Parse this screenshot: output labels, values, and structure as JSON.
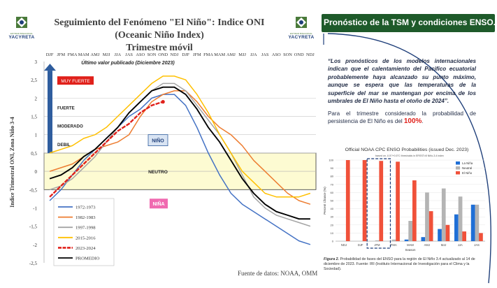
{
  "logo": {
    "caption": "YACYRETA",
    "small_text": "ENTIDAD BINACIONAL"
  },
  "title_line1": "Seguimiento del Fenómeno \"El Niño\": Indice ONI (Oceanic Niño Index)",
  "title_line2": "Trimestre móvil",
  "source": "Fuente de datos: NOAA, OMM",
  "colors": {
    "1972-1973": "#4472c4",
    "1982-1983": "#ed7d31",
    "1997-1998": "#a5a5a5",
    "2015-2016": "#ffc000",
    "2023-2024": "#e0201a",
    "PROMEDIO": "#000000",
    "neutral_band": "#fdfbd2",
    "header_green": "#1e5a2a"
  },
  "chart_data": [
    {
      "type": "line",
      "title": "Seguimiento del Fenómeno \"El Niño\": Indice ONI (Oceanic Niño Index) - Trimestre móvil",
      "xlabel": "",
      "ylabel": "Indice Trimestral ONI, Zona Niño 3-4",
      "x": [
        "DJF",
        "JFM",
        "FMA",
        "MAM",
        "AMJ",
        "MJJ",
        "JJA",
        "JAS",
        "ASO",
        "SON",
        "OND",
        "NDJ",
        "DJF",
        "JFM",
        "FMA",
        "MAM",
        "AMJ",
        "MJJ",
        "JJA",
        "JAS",
        "ASO",
        "SON",
        "OND",
        "NDJ"
      ],
      "ylim": [
        -2.5,
        3
      ],
      "yticks": [
        -2.5,
        -2,
        -1.5,
        -1,
        -0.5,
        0,
        0.5,
        1,
        1.5,
        2,
        2.5,
        3
      ],
      "ytick_labels": [
        "-2,5",
        "-2",
        "-1,5",
        "-1",
        "-0,5",
        "0",
        "0,5",
        "1",
        "1,5",
        "2",
        "2,5",
        "3"
      ],
      "series": [
        {
          "name": "1972-1973",
          "values": [
            -0.8,
            -0.5,
            -0.1,
            0.3,
            0.6,
            0.9,
            1.2,
            1.5,
            1.7,
            2.0,
            2.1,
            2.1,
            1.8,
            1.2,
            0.5,
            -0.1,
            -0.6,
            -0.9,
            -1.1,
            -1.3,
            -1.5,
            -1.7,
            -1.9,
            -2.0
          ]
        },
        {
          "name": "1982-1983",
          "values": [
            0.0,
            0.1,
            0.2,
            0.4,
            0.6,
            0.7,
            0.8,
            1.0,
            1.5,
            1.9,
            2.1,
            2.2,
            2.2,
            1.9,
            1.5,
            1.2,
            1.0,
            0.7,
            0.3,
            0.0,
            -0.3,
            -0.6,
            -0.8,
            -0.9
          ]
        },
        {
          "name": "1997-1998",
          "values": [
            -0.5,
            -0.4,
            -0.2,
            0.1,
            0.4,
            0.8,
            1.2,
            1.6,
            1.9,
            2.2,
            2.4,
            2.4,
            2.2,
            1.8,
            1.4,
            1.0,
            0.5,
            -0.1,
            -0.7,
            -1.0,
            -1.2,
            -1.3,
            -1.4,
            -1.5
          ]
        },
        {
          "name": "2015-2016",
          "values": [
            0.5,
            0.6,
            0.7,
            0.9,
            1.0,
            1.2,
            1.5,
            1.8,
            2.1,
            2.4,
            2.6,
            2.6,
            2.5,
            2.1,
            1.6,
            1.0,
            0.5,
            0.0,
            -0.3,
            -0.6,
            -0.7,
            -0.7,
            -0.7,
            -0.6
          ]
        },
        {
          "name": "2023-2024",
          "values": [
            -0.7,
            -0.4,
            -0.1,
            0.2,
            0.5,
            0.8,
            1.1,
            1.3,
            1.6,
            1.8,
            1.9,
            null,
            null,
            null,
            null,
            null,
            null,
            null,
            null,
            null,
            null,
            null,
            null,
            null
          ]
        },
        {
          "name": "PROMEDIO",
          "values": [
            -0.2,
            -0.1,
            0.1,
            0.4,
            0.6,
            0.9,
            1.2,
            1.6,
            1.9,
            2.2,
            2.3,
            2.3,
            2.1,
            1.7,
            1.2,
            0.8,
            0.3,
            -0.2,
            -0.6,
            -0.9,
            -1.1,
            -1.2,
            -1.3,
            -1.3
          ]
        }
      ],
      "thresholds": [
        {
          "label": "DEBIL",
          "y": 0.5
        },
        {
          "label": "MODERADO",
          "y": 1.0
        },
        {
          "label": "FUERTE",
          "y": 1.5
        },
        {
          "label": "MUY FUERTE",
          "y": 2.0
        }
      ],
      "neutral_band": [
        -0.5,
        0.5
      ],
      "annotations": {
        "last_value": "Último valor publicado  (Diciembre 2023)",
        "nino": "NIÑO",
        "neutro": "NEUTRO",
        "nina": "NIÑA",
        "muy_fuerte": "MUY FUERTE",
        "fuerte": "FUERTE",
        "moderado": "MODERADO",
        "debil": "DEBIL"
      },
      "legend_placement": "bottom-left"
    },
    {
      "type": "bar",
      "title": "Official NOAA CPC ENSO Probabilities (issued Dec. 2023)",
      "subtitle": "based on -0.5°/+0.5°C thresholds in ERSSTv5 Niño-3.4 index",
      "xlabel": "Season",
      "ylabel": "Percent Chance (%)",
      "ylim": [
        0,
        100
      ],
      "yticks": [
        0,
        10,
        20,
        30,
        40,
        50,
        60,
        70,
        80,
        90,
        100
      ],
      "categories": [
        "NDJ",
        "DJF",
        "JFM",
        "FMA",
        "MAM",
        "AMJ",
        "MJJ",
        "JJA",
        "JAS"
      ],
      "series": [
        {
          "name": "La Niña",
          "color": "#1f6fd6",
          "values": [
            0,
            0,
            0,
            0,
            2,
            5,
            15,
            33,
            45
          ]
        },
        {
          "name": "Neutral",
          "color": "#b4b4b4",
          "values": [
            0,
            0,
            1,
            2,
            25,
            60,
            65,
            55,
            45
          ]
        },
        {
          "name": "El Niño",
          "color": "#f0513a",
          "values": [
            100,
            100,
            99,
            98,
            75,
            37,
            20,
            12,
            10
          ]
        }
      ],
      "legend_placement": "top-right"
    }
  ],
  "right": {
    "header": "Pronóstico de la TSM y condiciones ENSO.",
    "quote": "“Los pronósticos de los modelos internacionales indican que el calentamiento del Pacifico ecuatorial probablemente haya alcanzado su punto máximo, aunque se espera que las temperaturas de la superficie del mar se mantengan por encima de los umbrales de El Niño hasta el otoño de 2024”.",
    "persist_text": "Para el trimestre considerado la probabilidad de persistencia de El Niño es del ",
    "persist_pct": "100%",
    "persist_end": ".",
    "caption_bold": "Figura 2.",
    "caption_text": " Probabilidad de fases del ENSO para la región de El Niño 3.4 actualizado al 14 de diciembre de 2023. Fuente: IRI (Instituto Internacional de Investigación para el Clima y la Sociedad)."
  }
}
